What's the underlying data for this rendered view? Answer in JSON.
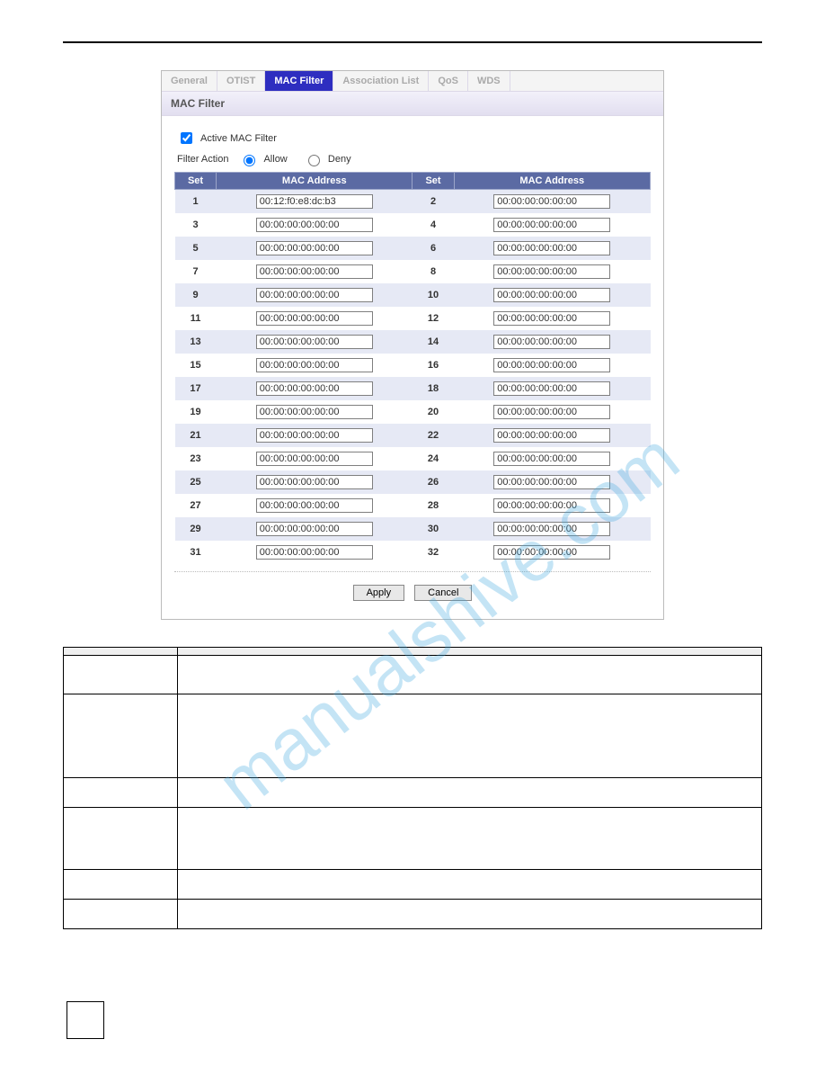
{
  "tabs": {
    "items": [
      "General",
      "OTIST",
      "MAC Filter",
      "Association List",
      "QoS",
      "WDS"
    ],
    "active_index": 2
  },
  "panel_title": "MAC Filter",
  "checkbox_label": "Active MAC Filter",
  "checkbox_checked": true,
  "filter_action_label": "Filter Action",
  "allow_label": "Allow",
  "deny_label": "Deny",
  "filter_action_selected": "allow",
  "table_headers": {
    "set": "Set",
    "mac": "MAC Address"
  },
  "mac_rows": [
    {
      "left_set": "1",
      "left_mac": "00:12:f0:e8:dc:b3",
      "right_set": "2",
      "right_mac": "00:00:00:00:00:00"
    },
    {
      "left_set": "3",
      "left_mac": "00:00:00:00:00:00",
      "right_set": "4",
      "right_mac": "00:00:00:00:00:00"
    },
    {
      "left_set": "5",
      "left_mac": "00:00:00:00:00:00",
      "right_set": "6",
      "right_mac": "00:00:00:00:00:00"
    },
    {
      "left_set": "7",
      "left_mac": "00:00:00:00:00:00",
      "right_set": "8",
      "right_mac": "00:00:00:00:00:00"
    },
    {
      "left_set": "9",
      "left_mac": "00:00:00:00:00:00",
      "right_set": "10",
      "right_mac": "00:00:00:00:00:00"
    },
    {
      "left_set": "11",
      "left_mac": "00:00:00:00:00:00",
      "right_set": "12",
      "right_mac": "00:00:00:00:00:00"
    },
    {
      "left_set": "13",
      "left_mac": "00:00:00:00:00:00",
      "right_set": "14",
      "right_mac": "00:00:00:00:00:00"
    },
    {
      "left_set": "15",
      "left_mac": "00:00:00:00:00:00",
      "right_set": "16",
      "right_mac": "00:00:00:00:00:00"
    },
    {
      "left_set": "17",
      "left_mac": "00:00:00:00:00:00",
      "right_set": "18",
      "right_mac": "00:00:00:00:00:00"
    },
    {
      "left_set": "19",
      "left_mac": "00:00:00:00:00:00",
      "right_set": "20",
      "right_mac": "00:00:00:00:00:00"
    },
    {
      "left_set": "21",
      "left_mac": "00:00:00:00:00:00",
      "right_set": "22",
      "right_mac": "00:00:00:00:00:00"
    },
    {
      "left_set": "23",
      "left_mac": "00:00:00:00:00:00",
      "right_set": "24",
      "right_mac": "00:00:00:00:00:00"
    },
    {
      "left_set": "25",
      "left_mac": "00:00:00:00:00:00",
      "right_set": "26",
      "right_mac": "00:00:00:00:00:00"
    },
    {
      "left_set": "27",
      "left_mac": "00:00:00:00:00:00",
      "right_set": "28",
      "right_mac": "00:00:00:00:00:00"
    },
    {
      "left_set": "29",
      "left_mac": "00:00:00:00:00:00",
      "right_set": "30",
      "right_mac": "00:00:00:00:00:00"
    },
    {
      "left_set": "31",
      "left_mac": "00:00:00:00:00:00",
      "right_set": "32",
      "right_mac": "00:00:00:00:00:00"
    }
  ],
  "apply_label": "Apply",
  "cancel_label": "Cancel",
  "watermark_text": "manualshive.com",
  "colors": {
    "tab_active_bg": "#2e2ec0",
    "tab_active_fg": "#ffffff",
    "tab_inactive_fg": "#aaaaaa",
    "panel_header_bg_top": "#f2f0fa",
    "panel_header_bg_bot": "#e2dff0",
    "grid_header_bg": "#5b6aa3",
    "grid_header_fg": "#ffffff",
    "grid_row_odd_bg": "#e6e9f5",
    "grid_row_even_bg": "#ffffff",
    "button_bg": "#e8e8e8",
    "watermark_color": "#3fa8df"
  }
}
